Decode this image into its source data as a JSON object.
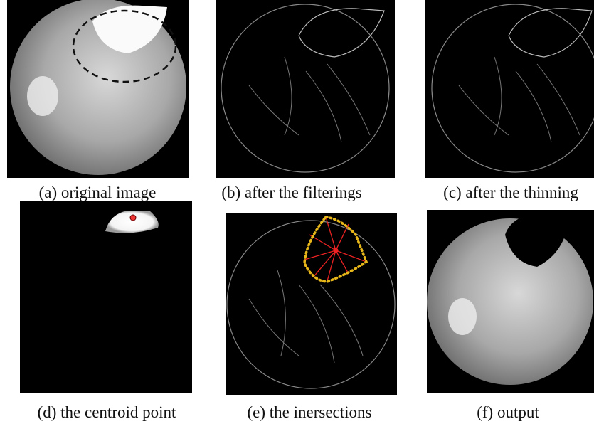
{
  "figure": {
    "panels": [
      {
        "caption": "(a) original image"
      },
      {
        "caption": "(b) after the filterings"
      },
      {
        "caption": "(c) after the thinning"
      },
      {
        "caption": "(d) the centroid point"
      },
      {
        "caption": "(e) the inersections"
      },
      {
        "caption": "(f) output"
      }
    ]
  }
}
